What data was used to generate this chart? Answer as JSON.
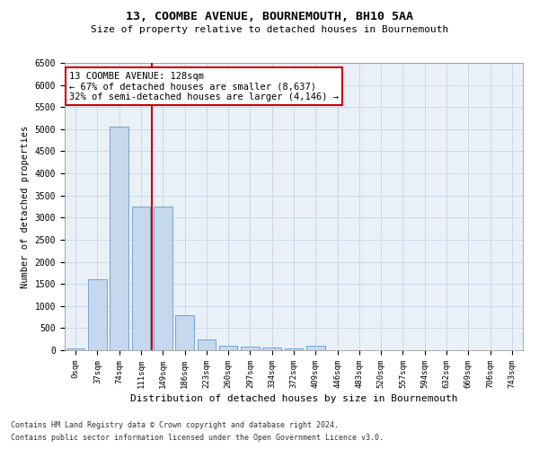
{
  "title1": "13, COOMBE AVENUE, BOURNEMOUTH, BH10 5AA",
  "title2": "Size of property relative to detached houses in Bournemouth",
  "xlabel": "Distribution of detached houses by size in Bournemouth",
  "ylabel": "Number of detached properties",
  "footer1": "Contains HM Land Registry data © Crown copyright and database right 2024.",
  "footer2": "Contains public sector information licensed under the Open Government Licence v3.0.",
  "annotation_line1": "13 COOMBE AVENUE: 128sqm",
  "annotation_line2": "← 67% of detached houses are smaller (8,637)",
  "annotation_line3": "32% of semi-detached houses are larger (4,146) →",
  "bar_color": "#c5d8ed",
  "bar_edge_color": "#6699cc",
  "vline_color": "#cc0000",
  "vline_x": 3.5,
  "categories": [
    "0sqm",
    "37sqm",
    "74sqm",
    "111sqm",
    "149sqm",
    "186sqm",
    "223sqm",
    "260sqm",
    "297sqm",
    "334sqm",
    "372sqm",
    "409sqm",
    "446sqm",
    "483sqm",
    "520sqm",
    "557sqm",
    "594sqm",
    "632sqm",
    "669sqm",
    "706sqm",
    "743sqm"
  ],
  "values": [
    40,
    1600,
    5050,
    3250,
    3250,
    800,
    250,
    100,
    80,
    60,
    50,
    110,
    0,
    0,
    0,
    0,
    0,
    0,
    0,
    0,
    0
  ],
  "ylim": [
    0,
    6500
  ],
  "yticks": [
    0,
    500,
    1000,
    1500,
    2000,
    2500,
    3000,
    3500,
    4000,
    4500,
    5000,
    5500,
    6000,
    6500
  ],
  "grid_color": "#c8d8e8",
  "background_color": "#eaf0f8"
}
